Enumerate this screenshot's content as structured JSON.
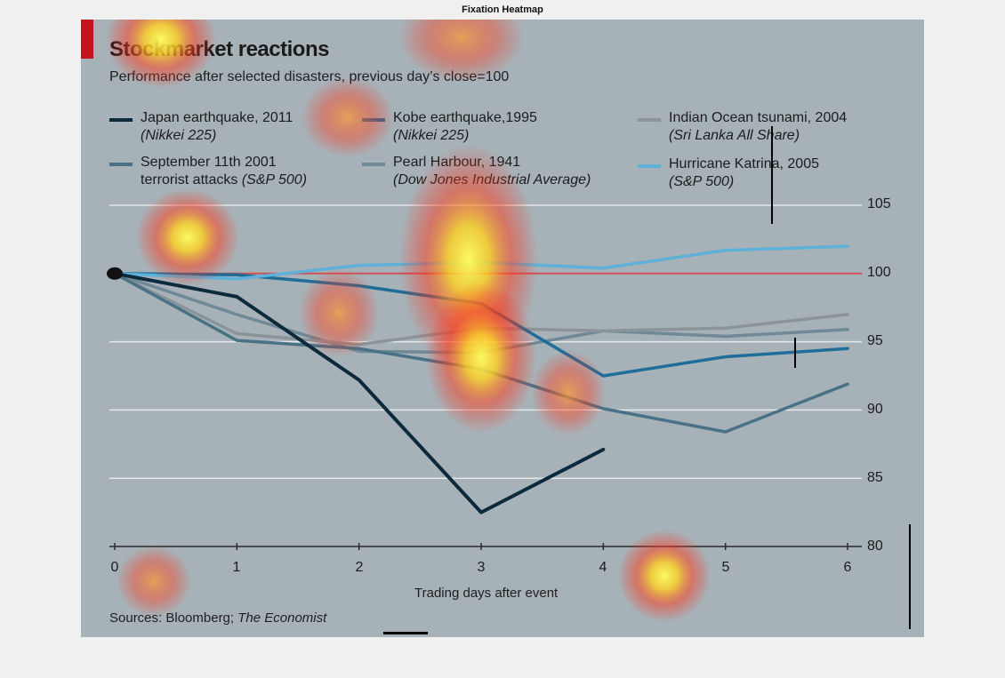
{
  "figure_title": "Fixation Heatmap",
  "colors": {
    "panel_background": "#a7b2b8",
    "accent_red": "#c2141a",
    "gridline": "#e4e8ea",
    "baseline": "#d05058"
  },
  "chart_data": {
    "type": "line",
    "title": "Stockmarket reactions",
    "subtitle": "Performance after selected disasters, previous day’s close=100",
    "xlabel": "Trading days after event",
    "ylabel": "",
    "x": [
      0,
      1,
      2,
      3,
      4,
      5,
      6
    ],
    "xlim": [
      0,
      6
    ],
    "ylim": [
      80,
      105
    ],
    "yticks": [
      80,
      85,
      90,
      95,
      100,
      105
    ],
    "grid": true,
    "baseline": 100,
    "legend_position": "top",
    "series": [
      {
        "name": "Japan earthquake, 2011",
        "note": "(Nikkei 225)",
        "color": "#0d2a3c",
        "values": [
          100,
          98.3,
          92.2,
          82.5,
          87.1,
          null,
          null
        ]
      },
      {
        "name": "Kobe earthquake,1995",
        "note": "(Nikkei 225)",
        "color": "#1f6d98",
        "values": [
          100,
          99.9,
          99.1,
          97.8,
          92.5,
          93.9,
          94.5
        ]
      },
      {
        "name": "Indian Ocean tsunami, 2004",
        "note": "(Sri Lanka All Share)",
        "color": "#8a9499",
        "values": [
          100,
          95.6,
          94.8,
          96.0,
          95.8,
          96.0,
          97.0
        ]
      },
      {
        "name": "September 11th 2001 terrorist attacks",
        "note": "(S&P 500)",
        "color": "#4a7287",
        "values": [
          100,
          95.1,
          94.5,
          93.0,
          90.1,
          88.4,
          91.9
        ]
      },
      {
        "name": "Pearl Harbour, 1941",
        "note": "(Dow Jones Industrial Average)",
        "color": "#6f8a96",
        "values": [
          100,
          97.0,
          94.3,
          94.2,
          95.8,
          95.4,
          95.9
        ]
      },
      {
        "name": "Hurricane Katrina, 2005",
        "note": "(S&P 500)",
        "color": "#5eb1d8",
        "values": [
          100,
          99.6,
          100.6,
          100.8,
          100.4,
          101.7,
          102.0
        ]
      }
    ]
  },
  "legend": [
    {
      "label": "Japan earthquake, 2011",
      "sub": "(Nikkei 225)"
    },
    {
      "label": "Kobe earthquake,1995",
      "sub": "(Nikkei 225)"
    },
    {
      "label": "Indian Ocean tsunami, 2004",
      "sub": "(Sri Lanka All Share)"
    },
    {
      "label": "September 11th 2001",
      "sub_prefix": "terrorist attacks ",
      "sub": "(S&P 500)"
    },
    {
      "label": "Pearl Harbour, 1941",
      "sub": "(Dow Jones Industrial Average)"
    },
    {
      "label": "Hurricane Katrina, 2005",
      "sub": "(S&P 500)"
    }
  ],
  "y_tick_labels": [
    "105",
    "100",
    "95",
    "90",
    "85",
    "80"
  ],
  "x_tick_labels": [
    "0",
    "1",
    "2",
    "3",
    "4",
    "5",
    "6"
  ],
  "sources": {
    "prefix": "Sources: Bloomberg; ",
    "italic": "The Economist"
  }
}
